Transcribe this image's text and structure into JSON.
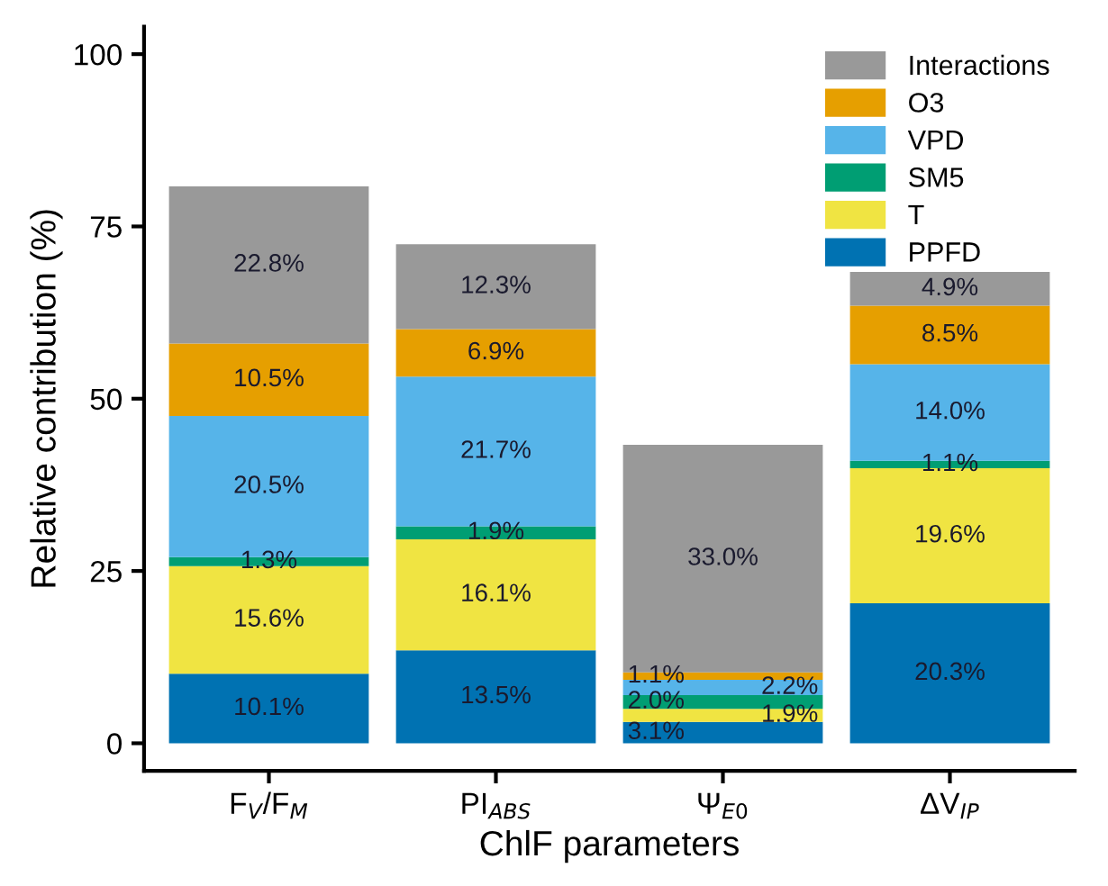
{
  "chart_data": {
    "type": "bar",
    "stacked": true,
    "xlabel": "ChlF parameters",
    "ylabel": "Relative contribution (%)",
    "categories": [
      "F$_{V}$/F$_{M}$",
      "PI$_{ABS}$",
      "Ψ$_{E0}$",
      "ΔV$_{IP}$"
    ],
    "ylim": [
      -4,
      104
    ],
    "yticks": [
      0,
      25,
      50,
      75,
      100
    ],
    "grid": false,
    "legend": "top right",
    "series": [
      {
        "name": "PPFD",
        "color": "#0072b2",
        "values": [
          10.1,
          13.5,
          3.1,
          20.3
        ],
        "value_labels": [
          "10.1%",
          "13.5%",
          "3.1%",
          "20.3%"
        ]
      },
      {
        "name": "T",
        "color": "#f0e442",
        "values": [
          15.6,
          16.1,
          1.9,
          19.6
        ],
        "value_labels": [
          "15.6%",
          "16.1%",
          "1.9%",
          "19.6%"
        ]
      },
      {
        "name": "SM5",
        "color": "#009e73",
        "values": [
          1.3,
          1.9,
          2.0,
          1.1
        ],
        "value_labels": [
          "1.3%",
          "1.9%",
          "2.0%",
          "1.1%"
        ]
      },
      {
        "name": "VPD",
        "color": "#56b4e9",
        "values": [
          20.5,
          21.7,
          2.2,
          14.0
        ],
        "value_labels": [
          "20.5%",
          "21.7%",
          "2.2%",
          "14.0%"
        ]
      },
      {
        "name": "O3",
        "color": "#e69f00",
        "values": [
          10.5,
          6.9,
          1.1,
          8.5
        ],
        "value_labels": [
          "10.5%",
          "6.9%",
          "1.1%",
          "8.5%"
        ]
      },
      {
        "name": "Interactions",
        "color": "#999999",
        "values": [
          22.8,
          12.3,
          33.0,
          4.9
        ],
        "value_labels": [
          "22.8%",
          "12.3%",
          "33.0%",
          "4.9%"
        ]
      }
    ]
  }
}
